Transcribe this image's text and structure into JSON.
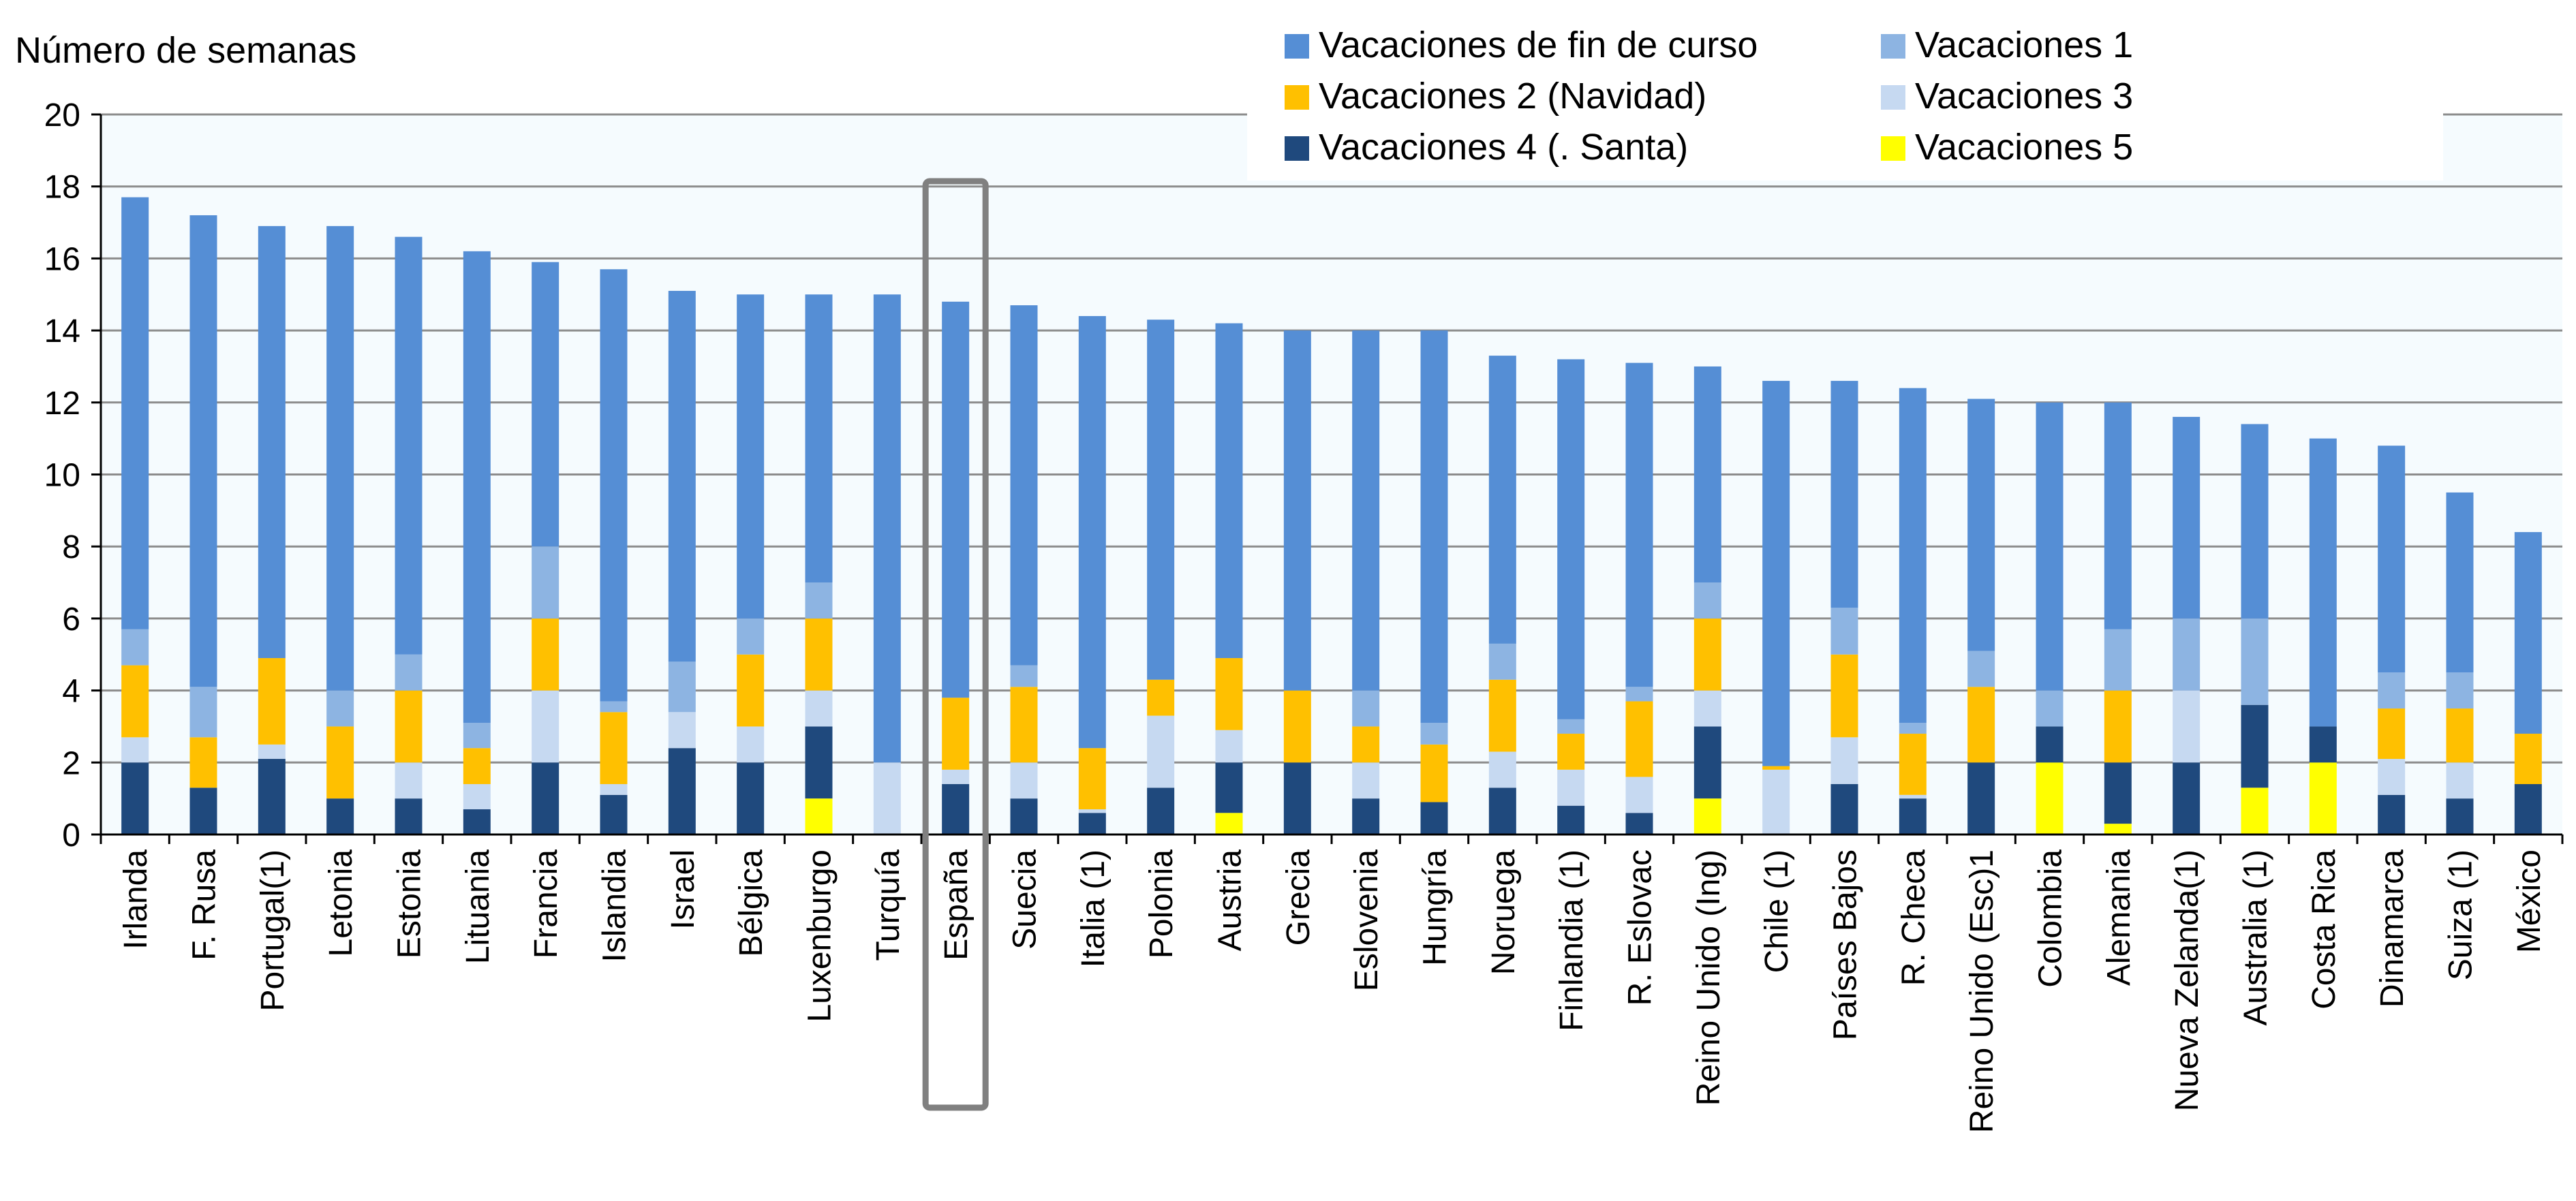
{
  "chart_data": {
    "type": "bar",
    "stacked": true,
    "ylabel": "Número de semanas",
    "ylim": [
      0,
      20
    ],
    "yticks": [
      0,
      2,
      4,
      6,
      8,
      10,
      12,
      14,
      16,
      18,
      20
    ],
    "grid": true,
    "legend_position": "top-right",
    "highlight_category": "España",
    "categories": [
      "Irlanda",
      "F. Rusa",
      "Portugal(1)",
      "Letonia",
      "Estonia",
      "Lituania",
      "Francia",
      "Islandia",
      "Israel",
      "Bélgica",
      "Luxenburgo",
      "Turquía",
      "España",
      "Suecia",
      "Italia (1)",
      "Polonia",
      "Austria",
      "Grecia",
      "Eslovenia",
      "Hungría",
      "Noruega",
      "Finlandia (1)",
      "R. Eslovac",
      "Reino Unido (Ing)",
      "Chile (1)",
      "Países Bajos",
      "R. Checa",
      "Reino Unido (Esc)1",
      "Colombia",
      "Alemania",
      "Nueva Zelanda(1)",
      "Australia (1)",
      "Costa Rica",
      "Dinamarca",
      "Suiza (1)",
      "México"
    ],
    "series": [
      {
        "name": "Vacaciones 5",
        "color": "#FFFF00",
        "values": [
          0,
          0,
          0,
          0,
          0,
          0,
          0,
          0,
          0,
          0,
          1,
          0,
          0,
          0,
          0,
          0,
          0.6,
          0,
          0,
          0,
          0,
          0,
          0,
          1,
          0,
          0,
          0,
          0,
          2,
          0.3,
          0,
          1.3,
          2,
          0,
          0,
          0
        ]
      },
      {
        "name": "Vacaciones 4 (. Santa)",
        "color": "#1F497D",
        "values": [
          2,
          1.3,
          2.1,
          1,
          1,
          0.7,
          2,
          1.1,
          2.4,
          2,
          2,
          0,
          1.4,
          1,
          0.6,
          1.3,
          1.4,
          2,
          1,
          0.9,
          1.3,
          0.8,
          0.6,
          2,
          0,
          1.4,
          1,
          2,
          1,
          1.7,
          2,
          2.3,
          1,
          1.1,
          1,
          1.4
        ]
      },
      {
        "name": "Vacaciones 3",
        "color": "#C6D9F1",
        "values": [
          0.7,
          0,
          0.4,
          0,
          1,
          0.7,
          2,
          0.3,
          1,
          1,
          1,
          2,
          0.4,
          1,
          0.1,
          2,
          0.9,
          0,
          1,
          0,
          1,
          1,
          1,
          1,
          1.8,
          1.3,
          0.1,
          0,
          0,
          0,
          2,
          0,
          0,
          1,
          1,
          0
        ]
      },
      {
        "name": "Vacaciones 2 (Navidad)",
        "color": "#FFC000",
        "values": [
          2,
          1.4,
          2.4,
          2,
          2,
          1,
          2,
          2,
          0,
          2,
          2,
          0,
          2,
          2.1,
          1.7,
          1,
          2,
          2,
          1,
          1.6,
          2,
          1,
          2.1,
          2,
          0.1,
          2.3,
          1.7,
          2.1,
          0,
          2,
          0,
          0,
          0,
          1.4,
          1.5,
          1.4
        ]
      },
      {
        "name": "Vacaciones 1",
        "color": "#8DB4E2",
        "values": [
          1,
          1.4,
          0,
          1,
          1,
          0.7,
          2,
          0.3,
          1.4,
          1,
          1,
          0,
          0,
          0.6,
          0,
          0,
          0,
          0,
          1,
          0.6,
          1,
          0.4,
          0.4,
          1,
          0,
          1.3,
          0.3,
          1,
          1,
          1.7,
          2,
          2.4,
          0,
          1,
          1,
          0
        ]
      },
      {
        "name": "Vacaciones de fin de curso",
        "color": "#558ED5",
        "values": [
          12,
          13.1,
          12,
          12.9,
          11.6,
          13.1,
          7.9,
          12,
          10.3,
          9,
          8,
          13,
          11,
          10,
          12,
          10,
          9.3,
          10,
          10,
          10.9,
          8,
          10,
          9,
          6,
          10.7,
          6.3,
          9.3,
          7,
          8,
          6.3,
          5.6,
          5.4,
          8,
          6.3,
          5,
          5.6
        ]
      }
    ]
  }
}
